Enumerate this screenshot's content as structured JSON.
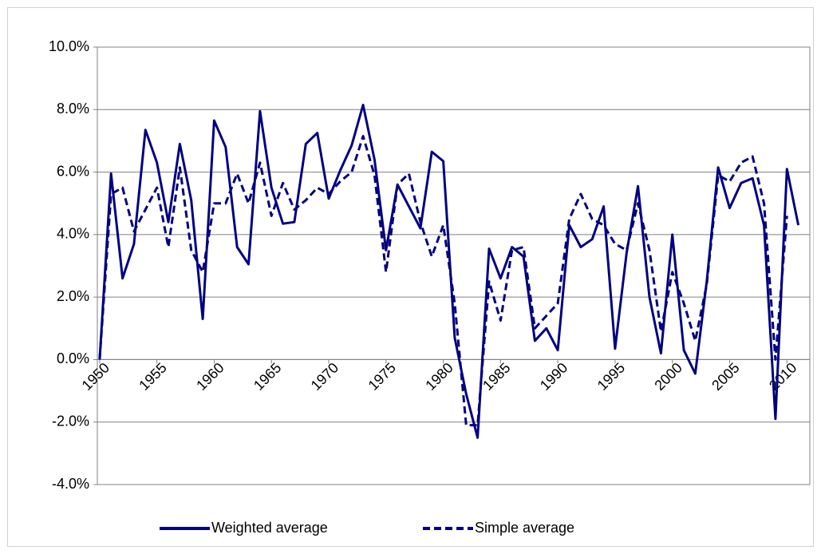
{
  "chart_data": {
    "type": "line",
    "x": [
      1950,
      1951,
      1952,
      1953,
      1954,
      1955,
      1956,
      1957,
      1958,
      1959,
      1960,
      1961,
      1962,
      1963,
      1964,
      1965,
      1966,
      1967,
      1968,
      1969,
      1970,
      1971,
      1972,
      1973,
      1974,
      1975,
      1976,
      1977,
      1978,
      1979,
      1980,
      1981,
      1982,
      1983,
      1984,
      1985,
      1986,
      1987,
      1988,
      1989,
      1990,
      1991,
      1992,
      1993,
      1994,
      1995,
      1996,
      1997,
      1998,
      1999,
      2000,
      2001,
      2002,
      2003,
      2004,
      2005,
      2006,
      2007,
      2008,
      2009,
      2010,
      2011
    ],
    "series": [
      {
        "name": "Weighted average",
        "color": "#000080",
        "dash": false,
        "values": [
          0.0,
          5.95,
          2.6,
          3.7,
          7.35,
          6.3,
          4.4,
          6.9,
          5.1,
          1.3,
          7.65,
          6.8,
          3.6,
          3.05,
          7.95,
          5.5,
          4.35,
          4.4,
          6.9,
          7.25,
          5.15,
          6.05,
          6.85,
          8.15,
          6.4,
          3.5,
          5.6,
          4.9,
          4.2,
          6.65,
          6.35,
          0.7,
          -1.1,
          -2.5,
          3.55,
          2.6,
          3.6,
          3.3,
          0.6,
          1.0,
          0.3,
          4.3,
          3.6,
          3.85,
          4.9,
          0.35,
          3.4,
          5.55,
          2.0,
          0.2,
          4.0,
          0.3,
          -0.45,
          2.5,
          6.15,
          4.85,
          5.65,
          5.8,
          4.3,
          -1.9,
          6.1,
          4.3
        ]
      },
      {
        "name": "Simple average",
        "color": "#000080",
        "dash": true,
        "values": [
          0.0,
          5.3,
          5.5,
          4.1,
          4.8,
          5.5,
          3.6,
          6.15,
          3.5,
          2.8,
          5.0,
          5.0,
          5.95,
          5.0,
          6.3,
          4.6,
          5.65,
          4.8,
          5.1,
          5.5,
          5.3,
          5.7,
          6.0,
          7.15,
          5.9,
          2.8,
          5.6,
          5.95,
          4.4,
          3.3,
          4.3,
          1.8,
          -2.1,
          -2.1,
          2.5,
          1.25,
          3.5,
          3.6,
          1.0,
          1.4,
          1.8,
          4.5,
          5.3,
          4.5,
          4.3,
          3.7,
          3.5,
          5.0,
          3.5,
          0.9,
          2.8,
          1.8,
          0.6,
          2.4,
          5.9,
          5.7,
          6.3,
          6.5,
          5.0,
          0.0,
          4.6,
          null
        ]
      }
    ],
    "xlim": [
      1949.8,
      2012
    ],
    "xticks": [
      1950,
      1955,
      1960,
      1965,
      1970,
      1975,
      1980,
      1985,
      1990,
      1995,
      2000,
      2005,
      2010
    ],
    "ylim": [
      -4,
      10
    ],
    "yticks": [
      {
        "value": -4,
        "label": "-4.0%"
      },
      {
        "value": -2,
        "label": "-2.0%"
      },
      {
        "value": 0,
        "label": "0.0%"
      },
      {
        "value": 2,
        "label": "2.0%"
      },
      {
        "value": 4,
        "label": "4.0%"
      },
      {
        "value": 6,
        "label": "6.0%"
      },
      {
        "value": 8,
        "label": "8.0%"
      },
      {
        "value": 10,
        "label": "10.0%"
      }
    ],
    "grid": true,
    "legend": "bottom"
  }
}
